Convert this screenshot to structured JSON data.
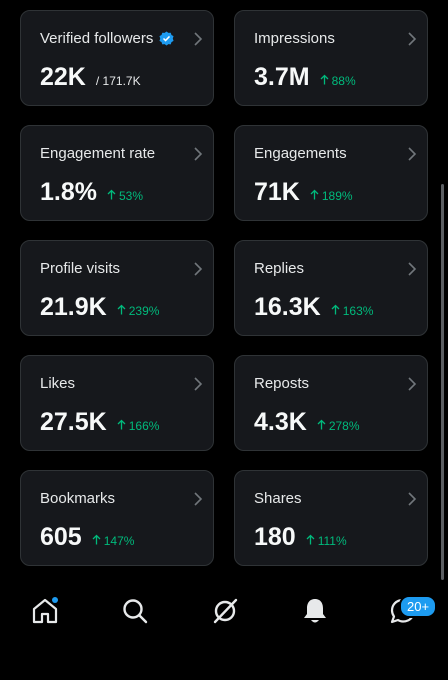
{
  "cards": [
    {
      "title": "Verified followers",
      "value": "22K",
      "total": "/ 171.7K"
    },
    {
      "title": "Impressions",
      "value": "3.7M",
      "change": "88%"
    },
    {
      "title": "Engagement rate",
      "value": "1.8%",
      "change": "53%"
    },
    {
      "title": "Engagements",
      "value": "71K",
      "change": "189%"
    },
    {
      "title": "Profile visits",
      "value": "21.9K",
      "change": "239%"
    },
    {
      "title": "Replies",
      "value": "16.3K",
      "change": "163%"
    },
    {
      "title": "Likes",
      "value": "27.5K",
      "change": "166%"
    },
    {
      "title": "Reposts",
      "value": "4.3K",
      "change": "278%"
    },
    {
      "title": "Bookmarks",
      "value": "605",
      "change": "147%"
    },
    {
      "title": "Shares",
      "value": "180",
      "change": "111%"
    }
  ],
  "nav": {
    "messages_badge": "20+"
  }
}
